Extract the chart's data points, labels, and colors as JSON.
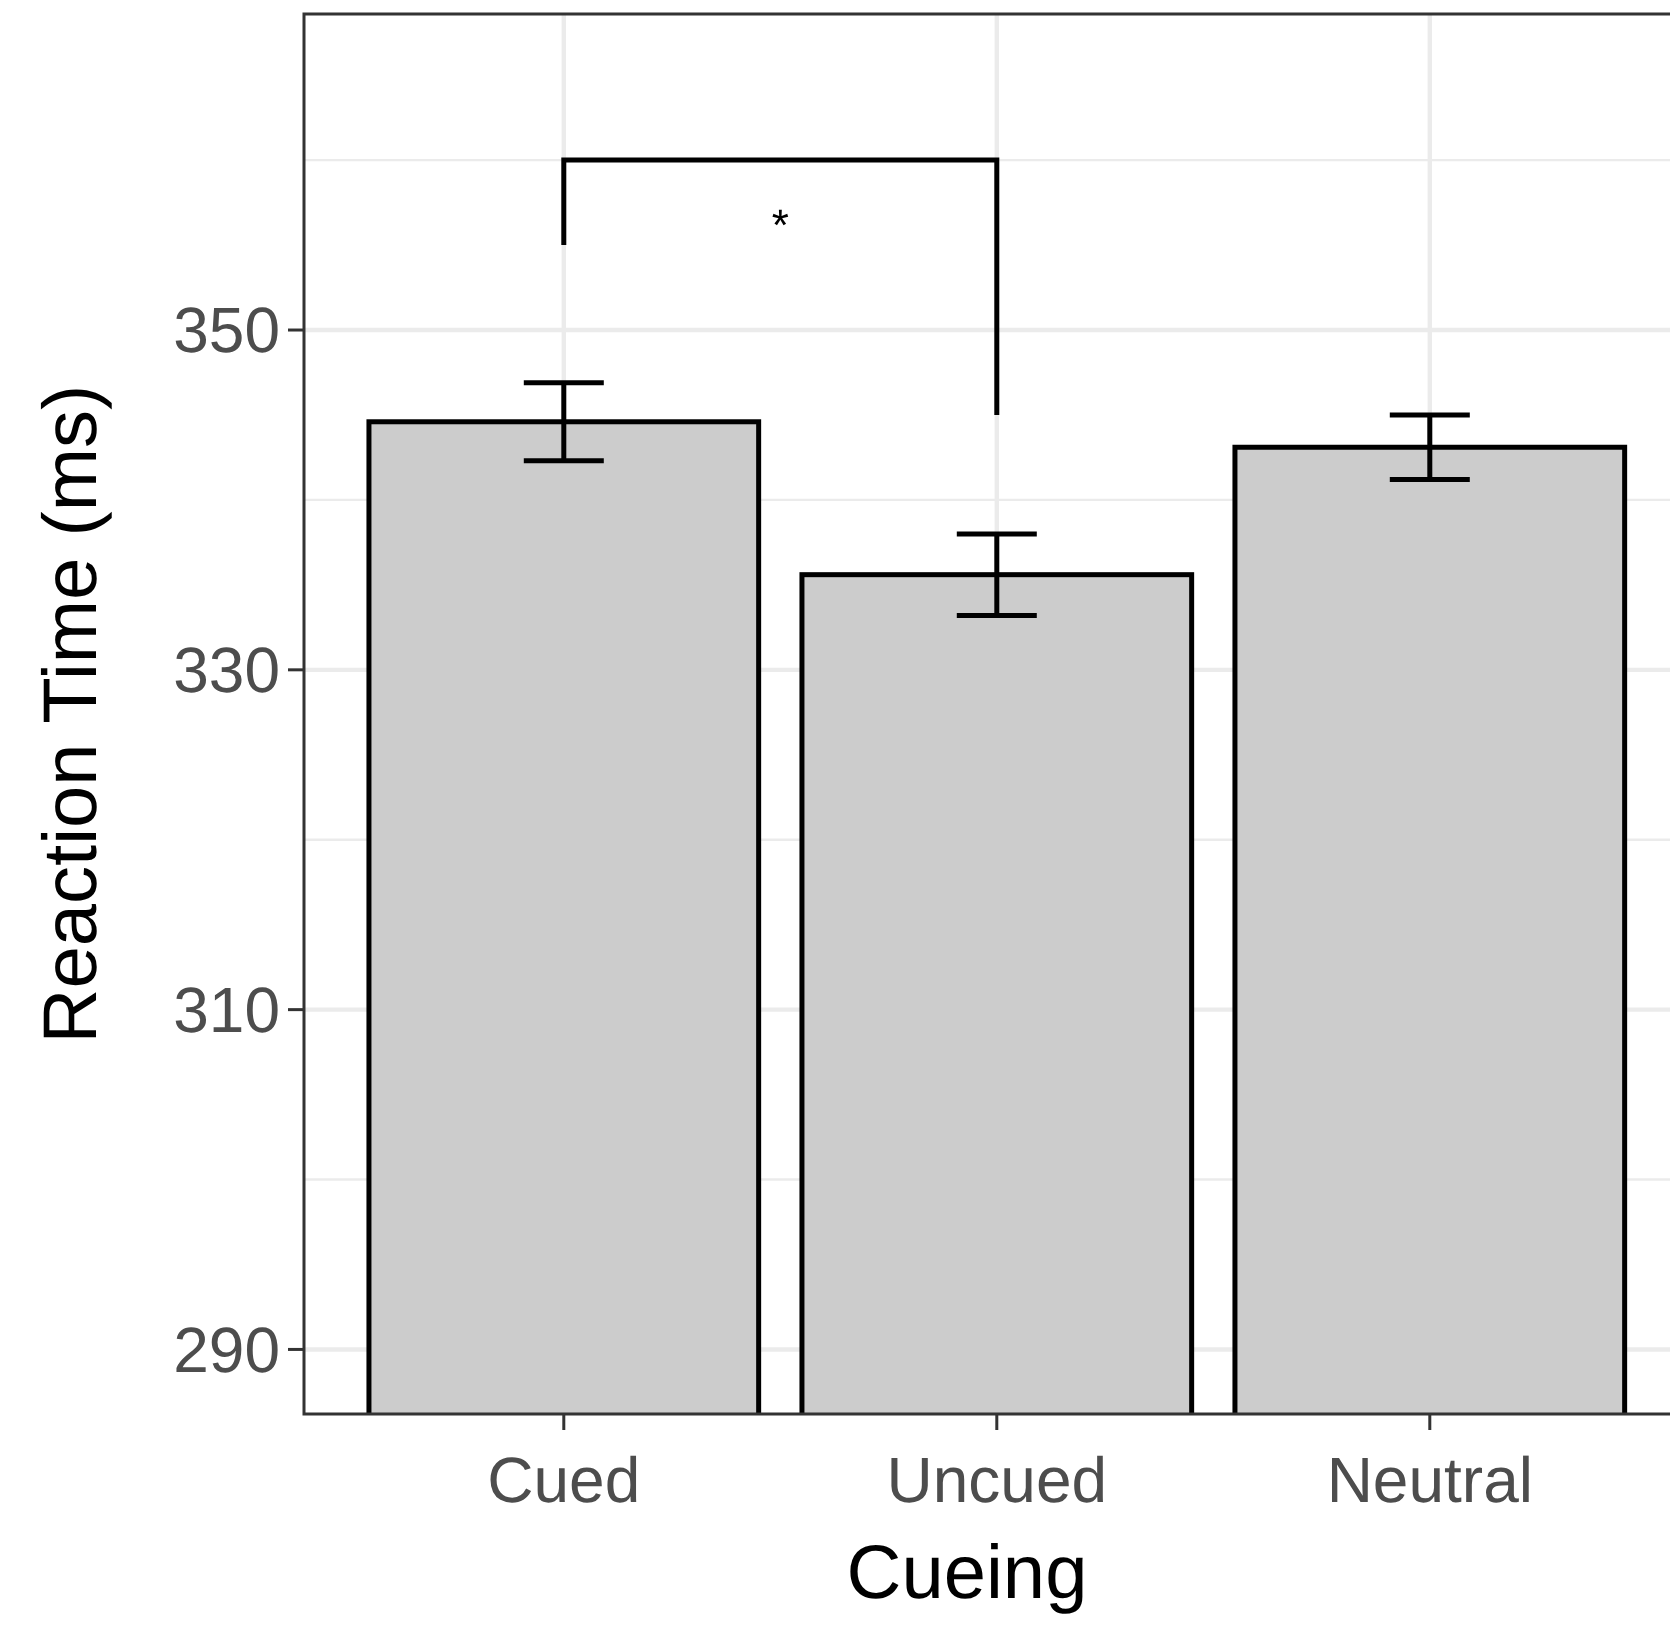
{
  "chart_data": {
    "type": "bar",
    "xlabel": "Cueing",
    "ylabel": "Reaction Time (ms)",
    "categories": [
      "Cued",
      "Uncued",
      "Neutral"
    ],
    "values": [
      344.6,
      335.6,
      343.1
    ],
    "errors": [
      2.3,
      2.4,
      1.9
    ],
    "color": "#cccccc",
    "ylim": [
      286.2,
      368.6
    ],
    "yticks": [
      290,
      310,
      330,
      350
    ],
    "grid": true,
    "annotations": [
      "*"
    ]
  }
}
